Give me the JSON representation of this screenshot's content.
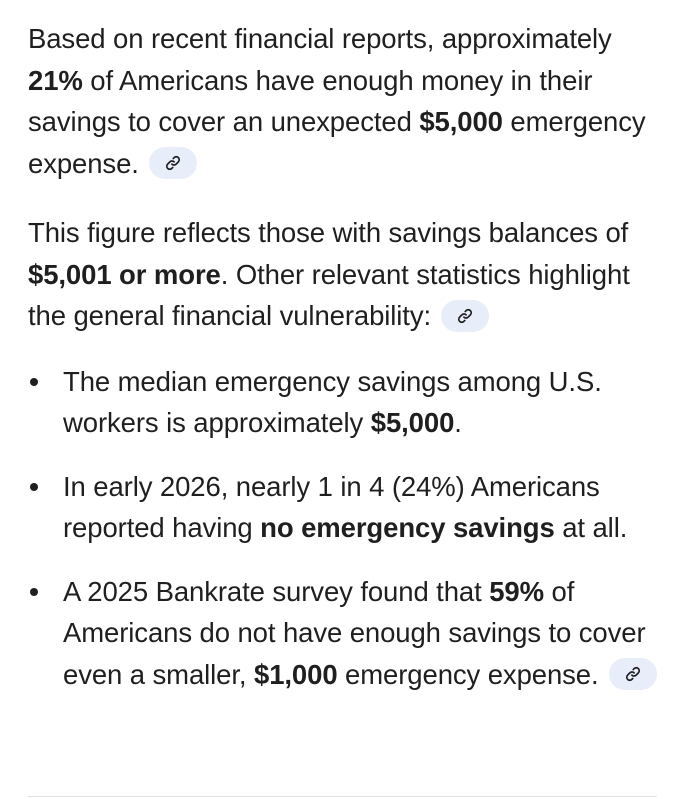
{
  "paragraph_1": {
    "t1": "Based on recent financial reports, approximately ",
    "b1": "21%",
    "t2": " of Americans have enough money in their savings to cover an unexpected ",
    "b2": "$5,000",
    "t3": " emergency expense."
  },
  "paragraph_2": {
    "t1": "This figure reflects those with savings balances of ",
    "b1": "$5,001 or more",
    "t2": ". Other relevant statistics highlight the general financial vulnerability:"
  },
  "bullets": [
    {
      "t1": "The median emergency savings among U.S. workers is approximately ",
      "b1": "$5,000",
      "t2": "."
    },
    {
      "t1": "In early 2026, nearly 1 in 4 (24%) Americans reported having ",
      "b1": "no emergency savings",
      "t2": " at all."
    },
    {
      "t1": "A 2025 Bankrate survey found that ",
      "b1": "59%",
      "t2": " of Americans do not have enough savings to cover even a smaller, ",
      "b2": "$1,000",
      "t3": " emergency expense."
    }
  ],
  "icons": {
    "source_chip": "link-icon"
  },
  "colors": {
    "text": "#1f1f1f",
    "chip_background": "#e8eef9",
    "chip_icon": "#1f1f1f"
  }
}
